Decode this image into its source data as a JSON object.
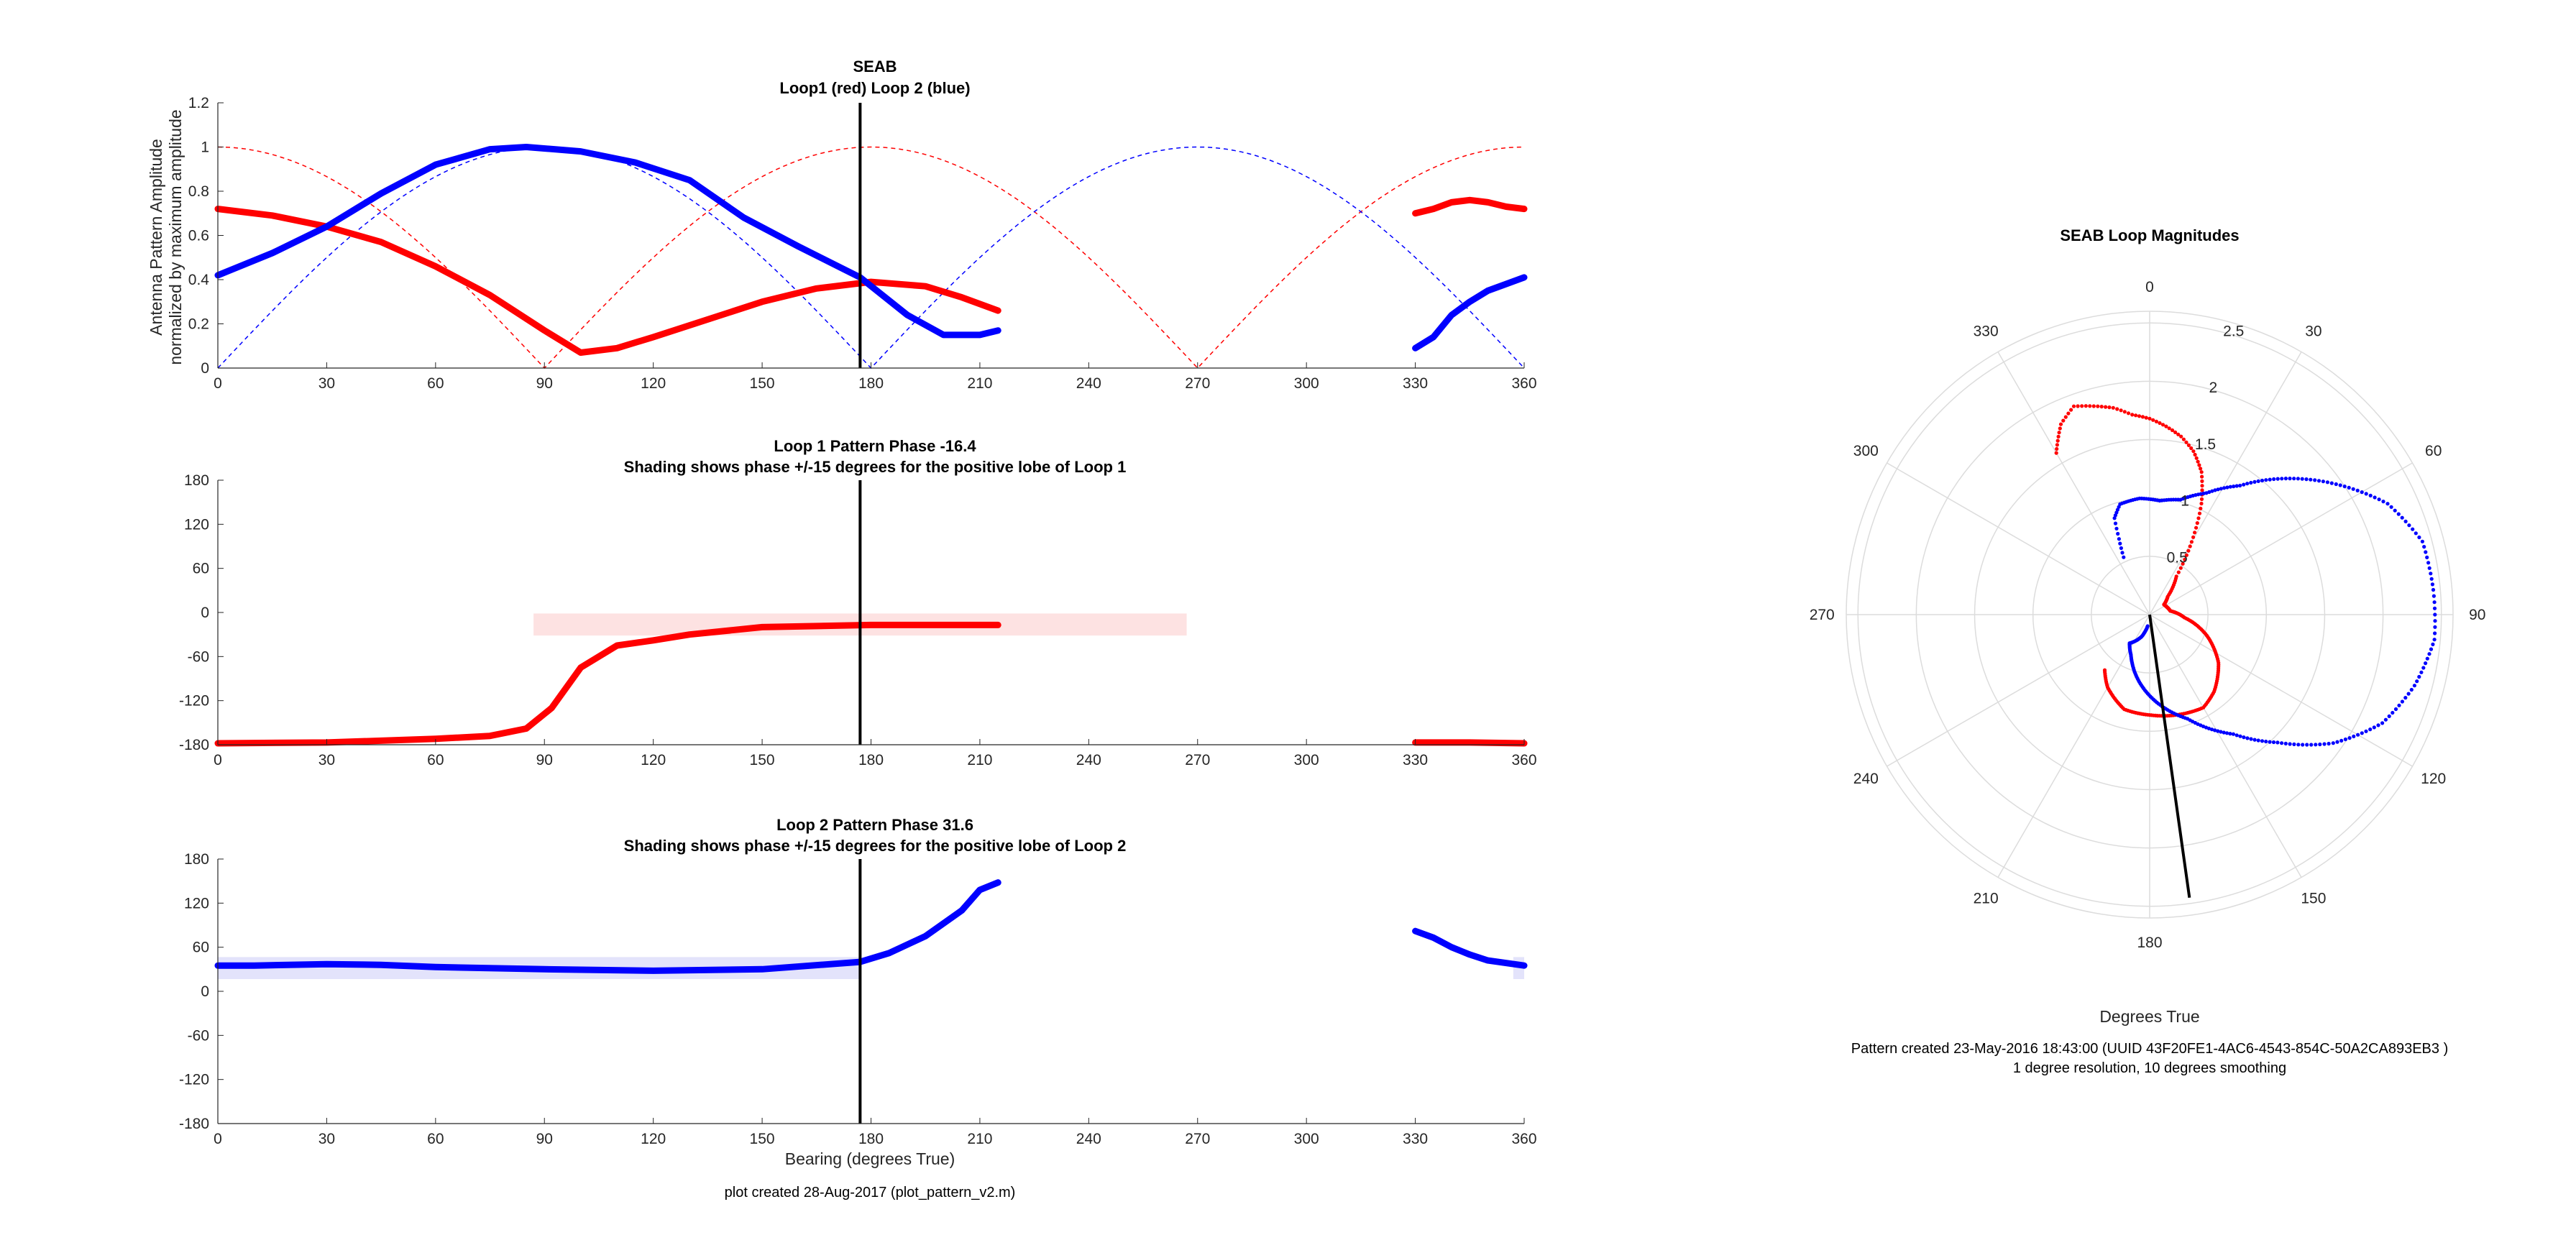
{
  "figure": {
    "footer_left": "plot created 28-Aug-2017 (plot_pattern_v2.m)",
    "footer_right_1": "Pattern created 23-May-2016 18:43:00 (UUID 43F20FE1-4AC6-4543-854C-50A2CA893EB3 )",
    "footer_right_2": "1 degree resolution, 10 degrees smoothing"
  },
  "colors": {
    "loop1": "#ff0000",
    "loop2": "#0000ff",
    "bearing": "#000000",
    "shade1": "#fde2e2",
    "shade2": "#e3e3fb",
    "grid": "#dcdcdc"
  },
  "chart_data": [
    {
      "type": "line",
      "title": "SEAB",
      "subtitle": "Loop1 (red) Loop 2 (blue)",
      "ylabel": "Antenna Pattern Amplitude",
      "ylabel2": "normalized by maximum amplitude",
      "xlim": [
        0,
        360
      ],
      "ylim": [
        0,
        1.2
      ],
      "xticks": [
        "0",
        "30",
        "60",
        "90",
        "120",
        "150",
        "180",
        "210",
        "240",
        "270",
        "300",
        "330",
        "360"
      ],
      "yticks": [
        "0",
        "0.2",
        "0.4",
        "0.6",
        "0.8",
        "1",
        "1.2"
      ],
      "bearing": 177,
      "series": [
        {
          "name": "Loop1",
          "color": "red",
          "segments": [
            {
              "x": [
                0,
                15,
                30,
                45,
                60,
                75,
                90,
                100,
                110,
                120,
                135,
                150,
                165,
                180,
                195,
                205,
                215
              ],
              "y": [
                0.72,
                0.69,
                0.64,
                0.57,
                0.46,
                0.33,
                0.17,
                0.07,
                0.09,
                0.14,
                0.22,
                0.3,
                0.36,
                0.39,
                0.37,
                0.32,
                0.26
              ]
            },
            {
              "x": [
                330,
                335,
                340,
                345,
                350,
                355,
                360
              ],
              "y": [
                0.7,
                0.72,
                0.75,
                0.76,
                0.75,
                0.73,
                0.72
              ]
            }
          ]
        },
        {
          "name": "Loop 2",
          "color": "blue",
          "segments": [
            {
              "x": [
                0,
                15,
                30,
                45,
                60,
                75,
                85,
                100,
                115,
                130,
                145,
                160,
                177,
                190,
                200,
                210,
                215
              ],
              "y": [
                0.42,
                0.52,
                0.64,
                0.79,
                0.92,
                0.99,
                1.0,
                0.98,
                0.93,
                0.85,
                0.68,
                0.55,
                0.41,
                0.24,
                0.15,
                0.15,
                0.17
              ]
            },
            {
              "x": [
                330,
                335,
                340,
                345,
                350,
                355,
                360
              ],
              "y": [
                0.09,
                0.14,
                0.24,
                0.3,
                0.35,
                0.38,
                0.41
              ]
            }
          ]
        }
      ],
      "reference_dashed": [
        {
          "name": "loop1 reference",
          "color": "red",
          "formula": "abs(cos(bearing))"
        },
        {
          "name": "loop2 reference",
          "color": "blue",
          "formula": "abs(sin(bearing))"
        }
      ]
    },
    {
      "type": "line",
      "title": "Loop 1 Pattern Phase -16.4",
      "subtitle": "Shading shows phase +/-15 degrees for the positive lobe of Loop 1",
      "xlim": [
        0,
        360
      ],
      "ylim": [
        -180,
        180
      ],
      "xticks": [
        "0",
        "30",
        "60",
        "90",
        "120",
        "150",
        "180",
        "210",
        "240",
        "270",
        "300",
        "330",
        "360"
      ],
      "yticks": [
        "-180",
        "-120",
        "-60",
        "0",
        "60",
        "120",
        "180"
      ],
      "bearing": 177,
      "shading": {
        "x0": 87,
        "x1": 267,
        "y0": -31.4,
        "y1": -1.4
      },
      "series": [
        {
          "name": "Loop 1",
          "color": "red",
          "segments": [
            {
              "x": [
                0,
                30,
                60,
                75,
                85,
                92,
                100,
                110,
                120,
                130,
                150,
                180,
                210,
                215
              ],
              "y": [
                -178,
                -177,
                -172,
                -168,
                -158,
                -130,
                -75,
                -45,
                -38,
                -30,
                -20,
                -17,
                -17,
                -17
              ]
            },
            {
              "x": [
                330,
                345,
                360
              ],
              "y": [
                -177,
                -177,
                -178
              ]
            }
          ]
        }
      ]
    },
    {
      "type": "line",
      "title": "Loop 2 Pattern Phase 31.6",
      "subtitle": "Shading shows phase +/-15 degrees for the positive lobe of Loop 2",
      "xlabel": "Bearing (degrees True)",
      "xlim": [
        0,
        360
      ],
      "ylim": [
        -180,
        180
      ],
      "xticks": [
        "0",
        "30",
        "60",
        "90",
        "120",
        "150",
        "180",
        "210",
        "240",
        "270",
        "300",
        "330",
        "360"
      ],
      "yticks": [
        "-180",
        "-120",
        "-60",
        "0",
        "60",
        "120",
        "180"
      ],
      "bearing": 177,
      "shading": {
        "x0": 0,
        "x1": 177,
        "y0": 16.6,
        "y1": 46.6,
        "x0b": 357,
        "x1b": 360
      },
      "series": [
        {
          "name": "Loop 2",
          "color": "blue",
          "segments": [
            {
              "x": [
                0,
                10,
                30,
                45,
                60,
                90,
                120,
                150,
                177,
                185,
                195,
                205,
                210,
                215
              ],
              "y": [
                35,
                35,
                37,
                36,
                33,
                30,
                28,
                30,
                40,
                52,
                75,
                110,
                138,
                148
              ]
            },
            {
              "x": [
                330,
                335,
                340,
                345,
                350,
                360
              ],
              "y": [
                82,
                73,
                60,
                50,
                42,
                35
              ]
            }
          ]
        }
      ]
    },
    {
      "type": "polar",
      "title": "SEAB Loop Magnitudes",
      "xlabel": "Degrees True",
      "rticks": [
        "0.5",
        "1",
        "1.5",
        "2",
        "2.5"
      ],
      "rmax": 2.6,
      "angle_labels": [
        "0",
        "30",
        "60",
        "90",
        "120",
        "150",
        "180",
        "210",
        "240",
        "270",
        "300",
        "330"
      ],
      "bearing": 172,
      "bearing_r": 2.45,
      "series": [
        {
          "name": "Loop1",
          "color": "red",
          "points": [
            [
              330,
              1.6
            ],
            [
              335,
              1.8
            ],
            [
              340,
              1.9
            ],
            [
              345,
              1.85
            ],
            [
              350,
              1.8
            ],
            [
              355,
              1.72
            ],
            [
              0,
              1.68
            ],
            [
              5,
              1.62
            ],
            [
              10,
              1.55
            ],
            [
              15,
              1.45
            ],
            [
              20,
              1.3
            ],
            [
              25,
              1.05
            ],
            [
              30,
              0.72
            ],
            [
              35,
              0.4
            ],
            [
              45,
              0.22
            ],
            [
              55,
              0.15
            ],
            [
              65,
              0.16
            ],
            [
              80,
              0.18
            ],
            [
              95,
              0.3
            ],
            [
              110,
              0.52
            ],
            [
              125,
              0.72
            ],
            [
              140,
              0.86
            ],
            [
              150,
              0.92
            ],
            [
              160,
              0.9
            ],
            [
              170,
              0.88
            ],
            [
              180,
              0.86
            ],
            [
              195,
              0.84
            ],
            [
              210,
              0.72
            ],
            [
              220,
              0.6
            ]
          ]
        },
        {
          "name": "Loop 2",
          "color": "blue",
          "points": [
            [
              190,
              0.1
            ],
            [
              200,
              0.2
            ],
            [
              215,
              0.3
            ],
            [
              215,
              0.3
            ],
            [
              205,
              0.38
            ],
            [
              200,
              0.44
            ],
            [
              160,
              0.95
            ],
            [
              145,
              1.25
            ],
            [
              135,
              1.55
            ],
            [
              125,
              1.92
            ],
            [
              115,
              2.2
            ],
            [
              105,
              2.35
            ],
            [
              95,
              2.45
            ],
            [
              85,
              2.44
            ],
            [
              75,
              2.42
            ],
            [
              65,
              2.25
            ],
            [
              55,
              1.95
            ],
            [
              45,
              1.65
            ],
            [
              35,
              1.35
            ],
            [
              25,
              1.15
            ],
            [
              15,
              1.02
            ],
            [
              5,
              0.98
            ],
            [
              355,
              1.0
            ],
            [
              345,
              0.98
            ],
            [
              340,
              0.88
            ],
            [
              338,
              0.7
            ],
            [
              335,
              0.5
            ]
          ]
        }
      ]
    }
  ]
}
